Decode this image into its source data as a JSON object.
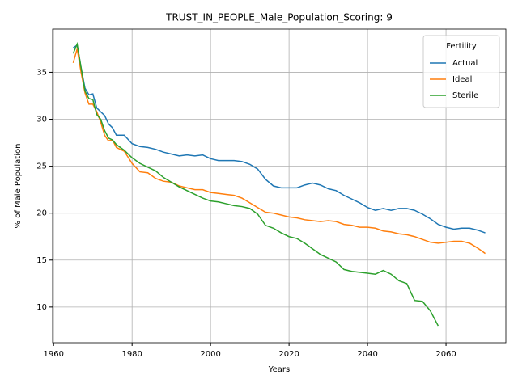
{
  "chart_data": {
    "type": "line",
    "title": "TRUST_IN_PEOPLE_Male_Population_Scoring: 9",
    "x_label": "Years",
    "y_label": "% of Male Population",
    "legend_title": "Fertility",
    "legend": "upper right",
    "grid": true,
    "x": [
      1965,
      1966,
      1967,
      1968,
      1969,
      1970,
      1971,
      1972,
      1973,
      1974,
      1975,
      1976,
      1978,
      1980,
      1982,
      1984,
      1986,
      1988,
      1990,
      1992,
      1994,
      1996,
      1998,
      2000,
      2002,
      2004,
      2006,
      2008,
      2010,
      2012,
      2014,
      2016,
      2018,
      2020,
      2022,
      2024,
      2026,
      2028,
      2030,
      2032,
      2034,
      2036,
      2038,
      2040,
      2042,
      2044,
      2046,
      2048,
      2050,
      2052,
      2054,
      2056,
      2058,
      2060,
      2062,
      2064,
      2066,
      2068,
      2070
    ],
    "series": [
      {
        "name": "Actual",
        "color": "#1f77b4",
        "values": [
          37.6,
          37.9,
          35.5,
          33.3,
          32.6,
          32.7,
          31.2,
          30.8,
          30.4,
          29.5,
          29.1,
          28.3,
          28.3,
          27.4,
          27.1,
          27.0,
          26.8,
          26.5,
          26.3,
          26.1,
          26.2,
          26.1,
          26.2,
          25.8,
          25.6,
          25.6,
          25.6,
          25.5,
          25.2,
          24.7,
          23.6,
          22.9,
          22.7,
          22.7,
          22.7,
          23.0,
          23.2,
          23.0,
          22.6,
          22.4,
          21.9,
          21.5,
          21.1,
          20.6,
          20.3,
          20.5,
          20.3,
          20.5,
          20.5,
          20.3,
          19.9,
          19.4,
          18.8,
          18.5,
          18.3,
          18.4,
          18.4,
          18.2,
          17.9
        ]
      },
      {
        "name": "Ideal",
        "color": "#ff7f0e",
        "values": [
          36.0,
          37.5,
          35.0,
          32.8,
          31.6,
          31.6,
          30.8,
          29.7,
          28.3,
          27.7,
          27.8,
          27.0,
          26.6,
          25.3,
          24.4,
          24.3,
          23.7,
          23.4,
          23.3,
          22.9,
          22.7,
          22.5,
          22.5,
          22.2,
          22.1,
          22.0,
          21.9,
          21.6,
          21.1,
          20.6,
          20.1,
          20.0,
          19.8,
          19.6,
          19.5,
          19.3,
          19.2,
          19.1,
          19.2,
          19.1,
          18.8,
          18.7,
          18.5,
          18.5,
          18.4,
          18.1,
          18.0,
          17.8,
          17.7,
          17.5,
          17.2,
          16.9,
          16.8,
          16.9,
          17.0,
          17.0,
          16.8,
          16.3,
          15.7
        ]
      },
      {
        "name": "Sterile",
        "color": "#2ca02c",
        "values": [
          37.0,
          38.0,
          35.5,
          33.0,
          32.2,
          32.1,
          30.5,
          30.0,
          28.8,
          28.0,
          27.8,
          27.3,
          26.7,
          25.9,
          25.3,
          24.9,
          24.5,
          23.8,
          23.3,
          22.8,
          22.4,
          22.0,
          21.6,
          21.3,
          21.2,
          21.0,
          20.8,
          20.7,
          20.5,
          19.9,
          18.7,
          18.4,
          17.9,
          17.5,
          17.3,
          16.8,
          16.2,
          15.6,
          15.2,
          14.8,
          14.0,
          13.8,
          13.7,
          13.6,
          13.5,
          13.9,
          13.5,
          12.8,
          12.5,
          10.7,
          10.6,
          9.6,
          8.0,
          null,
          null,
          null,
          null,
          null,
          null
        ]
      }
    ],
    "xlim": [
      1959.75,
      2075.25
    ],
    "xticks": [
      1960,
      1980,
      2000,
      2020,
      2040,
      2060
    ],
    "ylim": [
      6.2,
      39.6
    ],
    "yticks": [
      10,
      15,
      20,
      25,
      30,
      35
    ]
  }
}
